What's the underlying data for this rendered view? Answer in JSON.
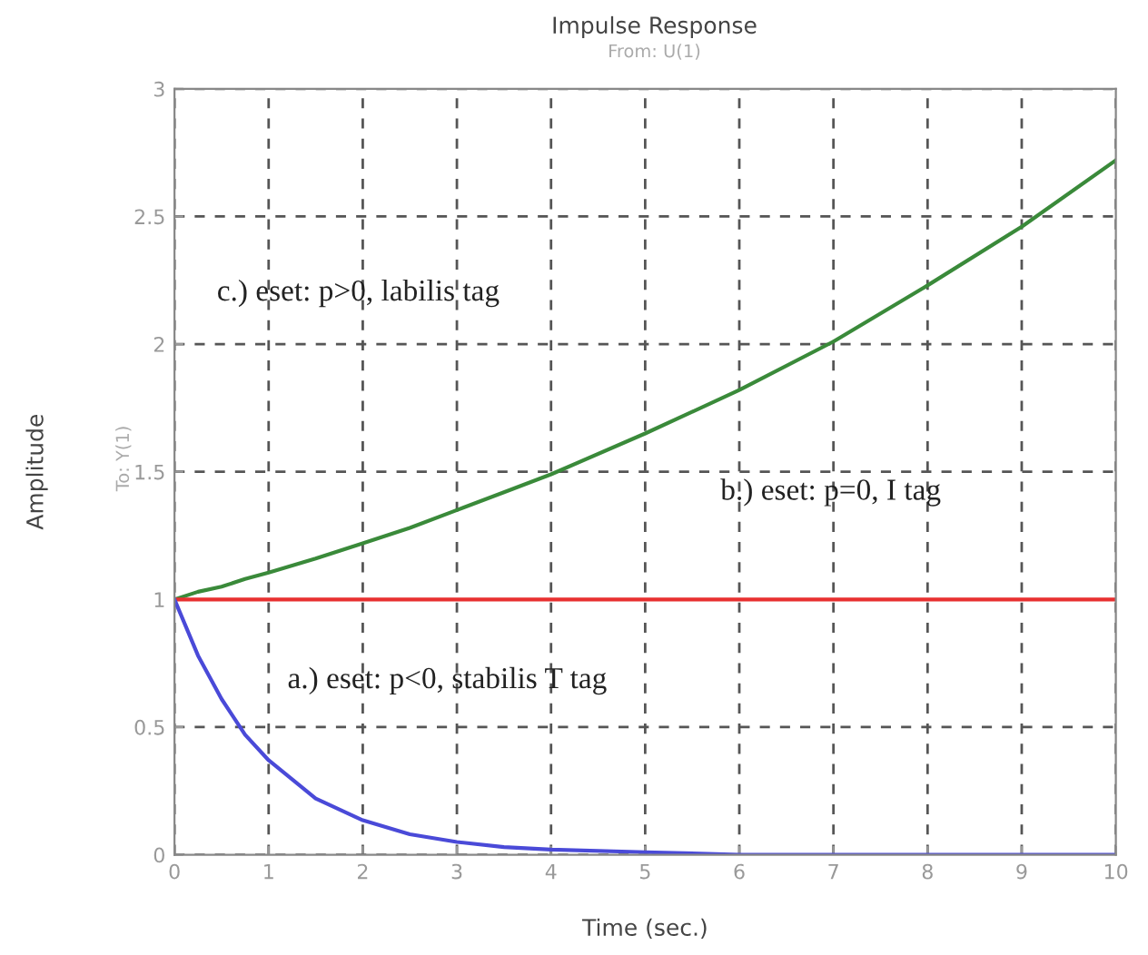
{
  "chart_data": {
    "type": "line",
    "title": "Impulse Response",
    "subtitle": "From: U(1)",
    "xlabel": "Time (sec.)",
    "ylabel": "Amplitude",
    "x": [
      0,
      0.25,
      0.5,
      0.75,
      1,
      1.5,
      2,
      2.5,
      3,
      3.5,
      4,
      5,
      6,
      7,
      8,
      9,
      10
    ],
    "series": [
      {
        "color": "#3a8a3a",
        "values": [
          1,
          1.03,
          1.05,
          1.08,
          1.105,
          1.16,
          1.22,
          1.28,
          1.35,
          1.42,
          1.49,
          1.65,
          1.82,
          2.01,
          2.23,
          2.46,
          2.72
        ]
      },
      {
        "color": "#e83030",
        "values": [
          1,
          1,
          1,
          1,
          1,
          1,
          1,
          1,
          1,
          1,
          1,
          1,
          1,
          1,
          1,
          1,
          1
        ]
      },
      {
        "color": "#4a4ad8",
        "values": [
          1,
          0.78,
          0.61,
          0.47,
          0.37,
          0.22,
          0.135,
          0.08,
          0.05,
          0.03,
          0.02,
          0.01,
          0,
          0,
          0,
          0,
          0
        ]
      }
    ],
    "annotations": [
      "c.) eset: p>0, labilis tag",
      "b.) eset: p=0, I tag",
      "a.) eset: p<0, stabilis T tag",
      "To: Y(1)"
    ],
    "xlim": [
      0,
      10
    ],
    "ylim": [
      0,
      3
    ],
    "xticks": [
      0,
      1,
      2,
      3,
      4,
      5,
      6,
      7,
      8,
      9,
      10
    ],
    "yticks": [
      0,
      0.5,
      1,
      1.5,
      2,
      2.5,
      3
    ],
    "grid": true,
    "line_style": "solid"
  }
}
